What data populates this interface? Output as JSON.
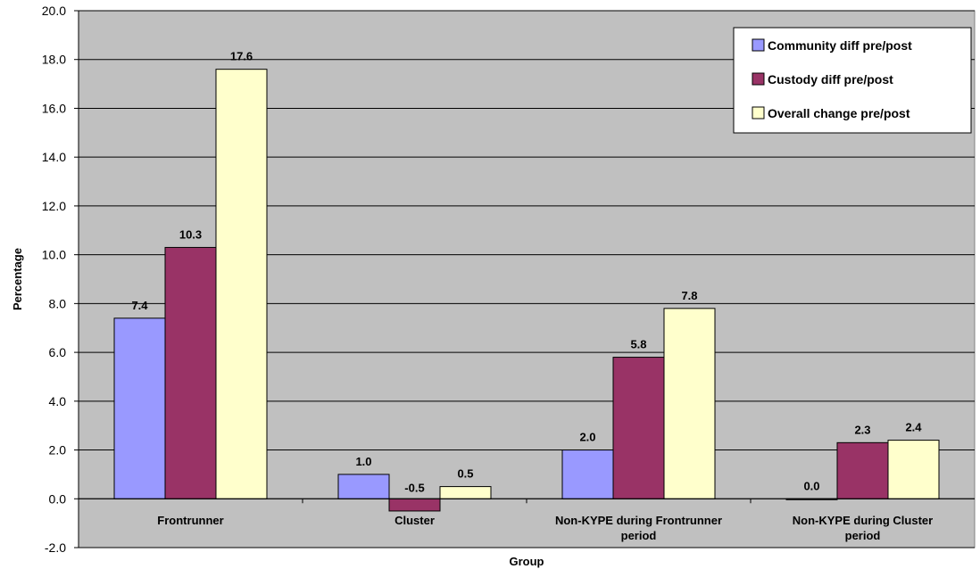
{
  "chart_data": {
    "type": "bar",
    "title": "",
    "xlabel": "Group",
    "ylabel": "Percentage",
    "ylim": [
      -2.0,
      20.0
    ],
    "ytick_step": 2.0,
    "ytick_labels": [
      "-2.0",
      "0.0",
      "2.0",
      "4.0",
      "6.0",
      "8.0",
      "10.0",
      "12.0",
      "14.0",
      "16.0",
      "18.0",
      "20.0"
    ],
    "grid": true,
    "legend_position": "top-right",
    "categories": [
      [
        "Frontrunner"
      ],
      [
        "Cluster"
      ],
      [
        "Non-KYPE during Frontrunner",
        "period"
      ],
      [
        "Non-KYPE during Cluster",
        "period"
      ]
    ],
    "series": [
      {
        "name": "Community diff pre/post",
        "color": "#9999ff",
        "values": [
          7.4,
          1.0,
          2.0,
          0.0
        ],
        "labels": [
          "7.4",
          "1.0",
          "2.0",
          "0.0"
        ]
      },
      {
        "name": "Custody diff pre/post",
        "color": "#993366",
        "values": [
          10.3,
          -0.5,
          5.8,
          2.3
        ],
        "labels": [
          "10.3",
          "-0.5",
          "5.8",
          "2.3"
        ]
      },
      {
        "name": "Overall change pre/post",
        "color": "#ffffcc",
        "values": [
          17.6,
          0.5,
          7.8,
          2.4
        ],
        "labels": [
          "17.6",
          "0.5",
          "7.8",
          "2.4"
        ]
      }
    ],
    "plot_background": "#c0c0c0"
  }
}
